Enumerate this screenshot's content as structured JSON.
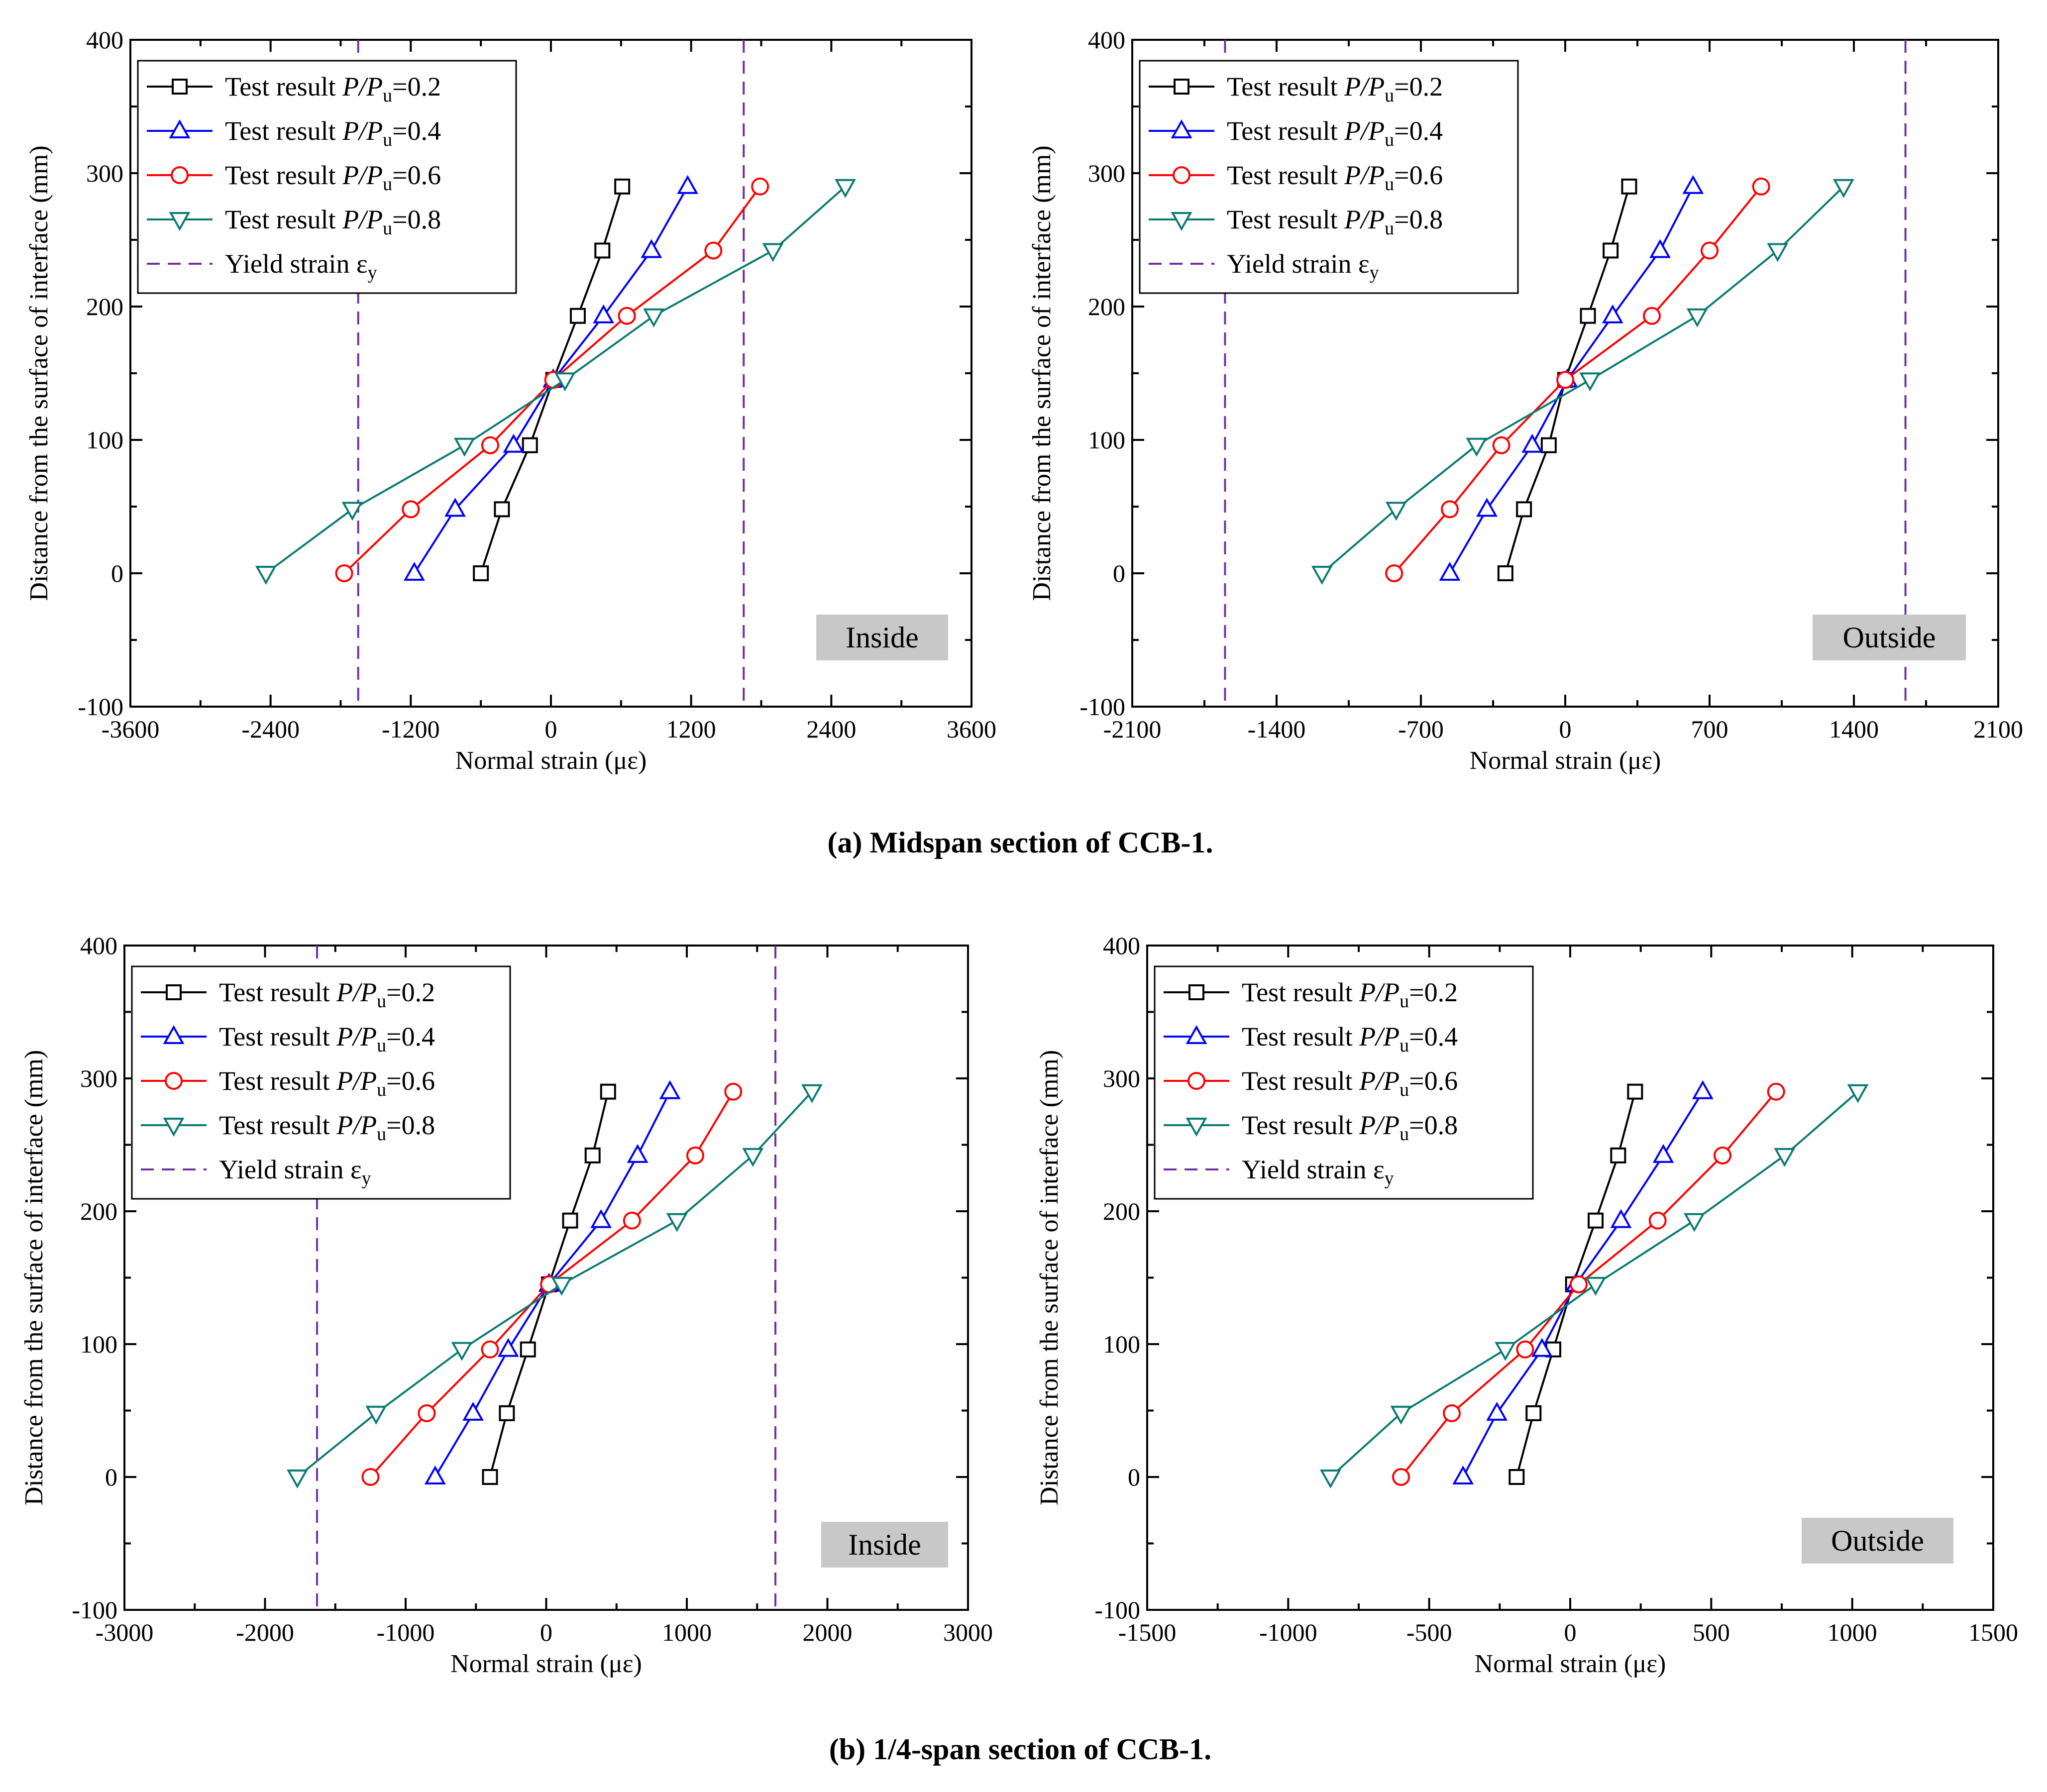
{
  "figure": {
    "caption_a": "(a) Midspan section of CCB-1.",
    "caption_b": "(b) 1/4-span section of CCB-1."
  },
  "legend": {
    "series_prefix": "Test result ",
    "ratio_symbol": "P/P",
    "ratio_subscript": "u",
    "yield_label": "Yield strain ε",
    "yield_subscript": "y"
  },
  "colors": {
    "P02": "#000000",
    "P04": "#0000ff",
    "P06": "#ff0000",
    "P08": "#0b7a72",
    "yield": "#7030a0",
    "badge": "#c8c8c8"
  },
  "chart_data": [
    {
      "type": "line",
      "panel": "a-inside",
      "badge": "Inside",
      "xlabel": "Normal strain (με)",
      "ylabel": "Distance from the surface of interface (mm)",
      "xlim": [
        -3600,
        3600
      ],
      "ylim": [
        -100,
        400
      ],
      "xticks": [
        "-3600",
        "-2400",
        "-1200",
        "0",
        "1200",
        "2400",
        "3600"
      ],
      "yticks": [
        "-100",
        "0",
        "100",
        "200",
        "300",
        "400"
      ],
      "legend_position": "top-left",
      "yield_strain": [
        -1650,
        1650
      ],
      "y": [
        0,
        48,
        96,
        145,
        193,
        242,
        290
      ],
      "series": [
        {
          "name": "P/Pu=0.2",
          "ratio": "=0.2",
          "marker": "square",
          "color_key": "P02",
          "x": [
            -600,
            -420,
            -180,
            20,
            230,
            440,
            610
          ]
        },
        {
          "name": "P/Pu=0.4",
          "ratio": "=0.4",
          "marker": "triangle-up",
          "color_key": "P04",
          "x": [
            -1170,
            -820,
            -320,
            20,
            450,
            860,
            1170
          ]
        },
        {
          "name": "P/Pu=0.6",
          "ratio": "=0.6",
          "marker": "circle",
          "color_key": "P06",
          "x": [
            -1770,
            -1200,
            -520,
            20,
            650,
            1390,
            1790
          ]
        },
        {
          "name": "P/Pu=0.8",
          "ratio": "=0.8",
          "marker": "triangle-down",
          "color_key": "P08",
          "x": [
            -2440,
            -1700,
            -740,
            120,
            880,
            1900,
            2520
          ]
        }
      ]
    },
    {
      "type": "line",
      "panel": "a-outside",
      "badge": "Outside",
      "xlabel": "Normal strain (με)",
      "ylabel": "Distance from the surface of interface (mm)",
      "xlim": [
        -2100,
        2100
      ],
      "ylim": [
        -100,
        400
      ],
      "xticks": [
        "-2100",
        "-1400",
        "-700",
        "0",
        "700",
        "1400",
        "2100"
      ],
      "yticks": [
        "-100",
        "0",
        "100",
        "200",
        "300",
        "400"
      ],
      "legend_position": "top-left",
      "yield_strain": [
        -1650,
        1650
      ],
      "y": [
        0,
        48,
        96,
        145,
        193,
        242,
        290
      ],
      "series": [
        {
          "name": "P/Pu=0.2",
          "ratio": "=0.2",
          "marker": "square",
          "color_key": "P02",
          "x": [
            -290,
            -200,
            -80,
            0,
            110,
            220,
            310
          ]
        },
        {
          "name": "P/Pu=0.4",
          "ratio": "=0.4",
          "marker": "triangle-up",
          "color_key": "P04",
          "x": [
            -560,
            -380,
            -160,
            10,
            230,
            460,
            620
          ]
        },
        {
          "name": "P/Pu=0.6",
          "ratio": "=0.6",
          "marker": "circle",
          "color_key": "P06",
          "x": [
            -830,
            -560,
            -310,
            0,
            420,
            700,
            950
          ]
        },
        {
          "name": "P/Pu=0.8",
          "ratio": "=0.8",
          "marker": "triangle-down",
          "color_key": "P08",
          "x": [
            -1180,
            -820,
            -430,
            120,
            640,
            1030,
            1350
          ]
        }
      ]
    },
    {
      "type": "line",
      "panel": "b-inside",
      "badge": "Inside",
      "xlabel": "Normal strain (με)",
      "ylabel": "Distance from the surface of interface (mm)",
      "xlim": [
        -3000,
        3000
      ],
      "ylim": [
        -100,
        400
      ],
      "xticks": [
        "-3000",
        "-2000",
        "-1000",
        "0",
        "1000",
        "2000",
        "3000"
      ],
      "yticks": [
        "-100",
        "0",
        "100",
        "200",
        "300",
        "400"
      ],
      "legend_position": "top-left",
      "yield_strain": [
        -1630,
        1630
      ],
      "y": [
        0,
        48,
        96,
        145,
        193,
        242,
        290
      ],
      "series": [
        {
          "name": "P/Pu=0.2",
          "ratio": "=0.2",
          "marker": "square",
          "color_key": "P02",
          "x": [
            -400,
            -280,
            -130,
            20,
            170,
            330,
            440
          ]
        },
        {
          "name": "P/Pu=0.4",
          "ratio": "=0.4",
          "marker": "triangle-up",
          "color_key": "P04",
          "x": [
            -790,
            -520,
            -270,
            20,
            390,
            650,
            880
          ]
        },
        {
          "name": "P/Pu=0.6",
          "ratio": "=0.6",
          "marker": "circle",
          "color_key": "P06",
          "x": [
            -1250,
            -850,
            -400,
            20,
            610,
            1060,
            1330
          ]
        },
        {
          "name": "P/Pu=0.8",
          "ratio": "=0.8",
          "marker": "triangle-down",
          "color_key": "P08",
          "x": [
            -1770,
            -1210,
            -600,
            110,
            930,
            1470,
            1890
          ]
        }
      ]
    },
    {
      "type": "line",
      "panel": "b-outside",
      "badge": "Outside",
      "xlabel": "Normal strain (με)",
      "ylabel": "Distance from the surface of interface (mm)",
      "xlim": [
        -1500,
        1500
      ],
      "ylim": [
        -100,
        400
      ],
      "xticks": [
        "-1500",
        "-1000",
        "-500",
        "0",
        "500",
        "1000",
        "1500"
      ],
      "yticks": [
        "-100",
        "0",
        "100",
        "200",
        "300",
        "400"
      ],
      "legend_position": "top-left",
      "yield_strain": [],
      "y": [
        0,
        48,
        96,
        145,
        193,
        242,
        290
      ],
      "series": [
        {
          "name": "P/Pu=0.2",
          "ratio": "=0.2",
          "marker": "square",
          "color_key": "P02",
          "x": [
            -190,
            -130,
            -60,
            10,
            90,
            170,
            230
          ]
        },
        {
          "name": "P/Pu=0.4",
          "ratio": "=0.4",
          "marker": "triangle-up",
          "color_key": "P04",
          "x": [
            -380,
            -260,
            -100,
            20,
            180,
            330,
            470
          ]
        },
        {
          "name": "P/Pu=0.6",
          "ratio": "=0.6",
          "marker": "circle",
          "color_key": "P06",
          "x": [
            -600,
            -420,
            -160,
            30,
            310,
            540,
            730
          ]
        },
        {
          "name": "P/Pu=0.8",
          "ratio": "=0.8",
          "marker": "triangle-down",
          "color_key": "P08",
          "x": [
            -850,
            -600,
            -230,
            90,
            440,
            760,
            1020
          ]
        }
      ]
    }
  ]
}
